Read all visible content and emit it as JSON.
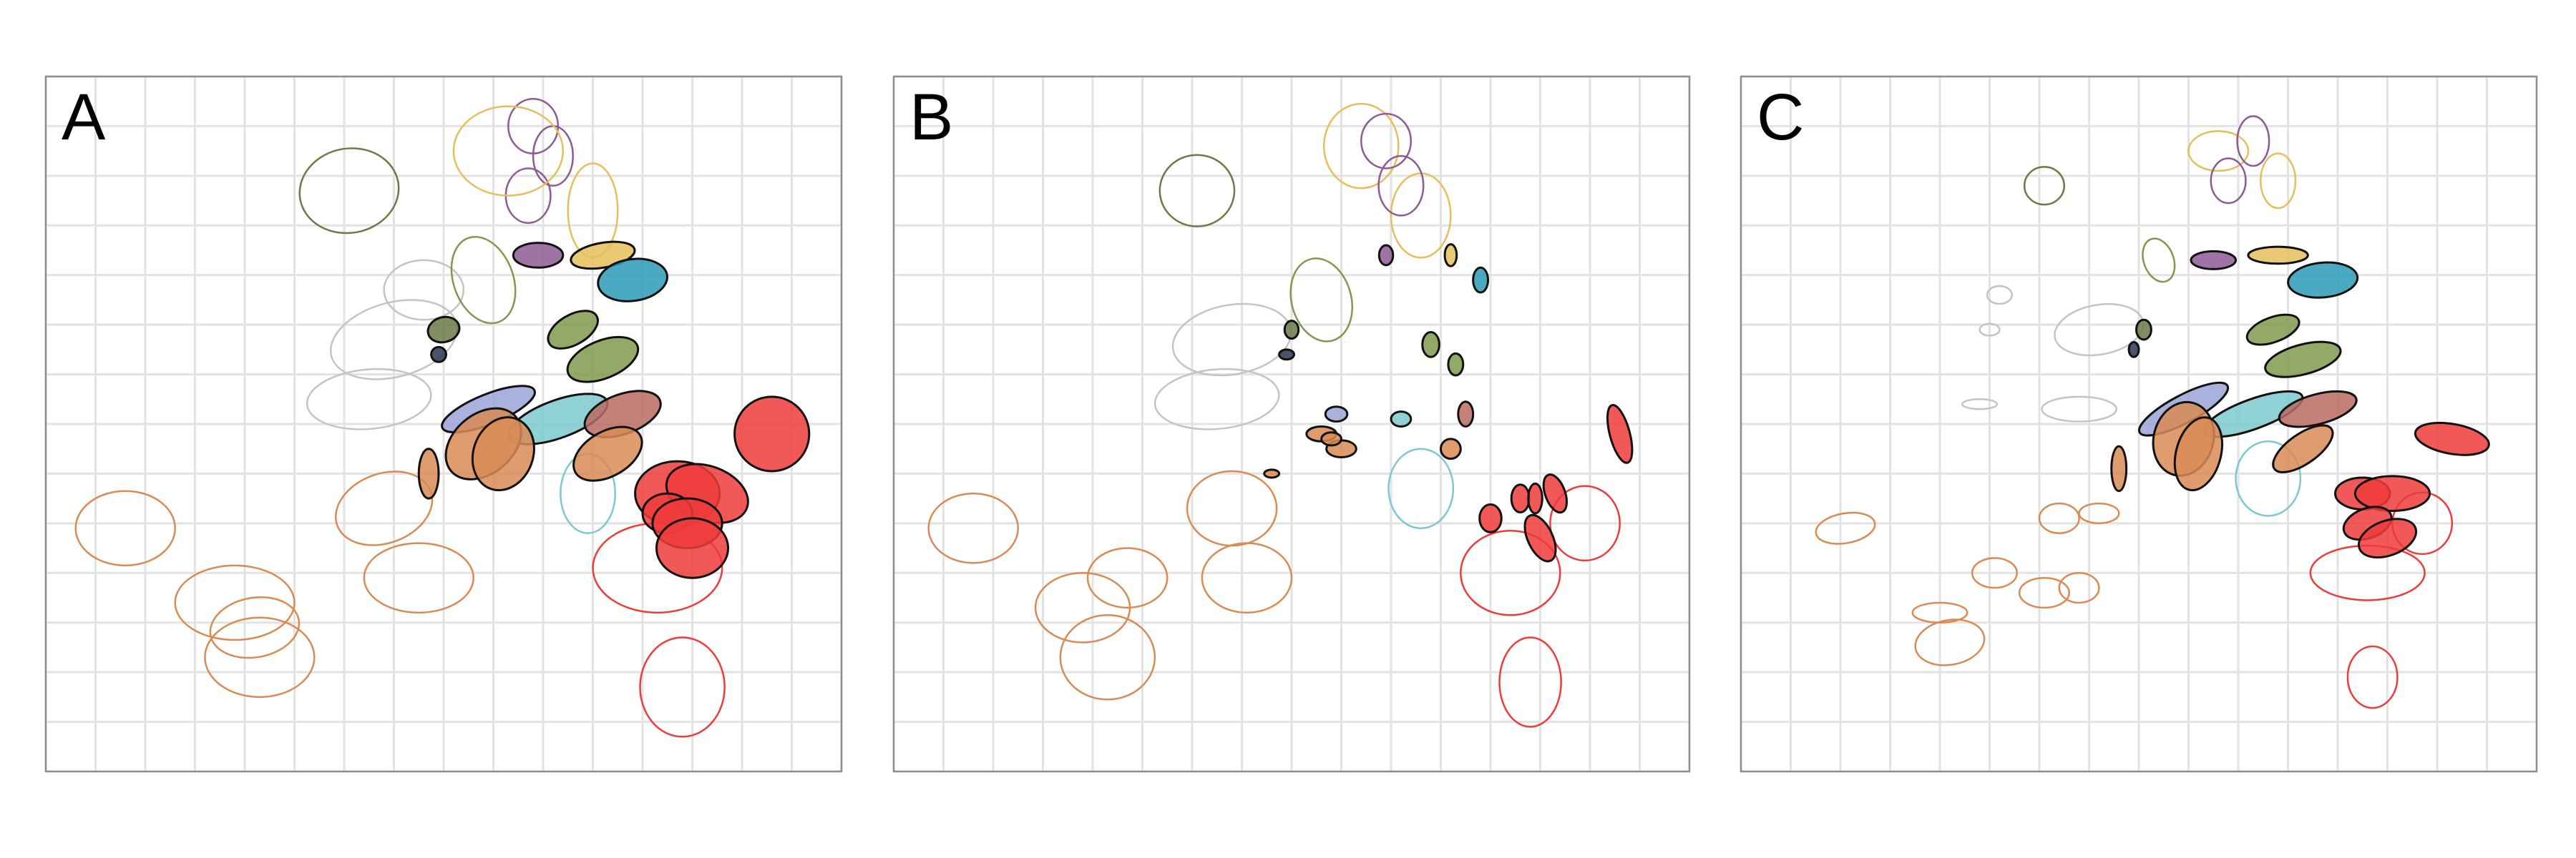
{
  "figure": {
    "colors": {
      "grid": "#e3e3e3",
      "frame": "#8f8f8f",
      "gray": "#c4c4c4",
      "navy": "#2d3550",
      "orange": "#d98b55",
      "red": "#ee3b3b",
      "gold": "#e6bf5c",
      "purple": "#8e5a93",
      "olive": "#6b7a49",
      "green": "#7f9a4e",
      "teal": "#2c9ab7",
      "cyan": "#7cc9cf",
      "lavender": "#9aa3d6",
      "brown": "#b86b63"
    }
  },
  "chart_data": [
    {
      "type": "scatter",
      "panel_label": "A",
      "title": "",
      "xlabel": "",
      "ylabel": "",
      "xlim": [
        0,
        16
      ],
      "ylim": [
        0,
        14
      ],
      "grid": true,
      "filled": [
        {
          "group": "purple",
          "x": 9.9,
          "y": 10.4,
          "rx": 0.5,
          "ry": 0.25,
          "angle": 0
        },
        {
          "group": "gold",
          "x": 11.2,
          "y": 10.4,
          "rx": 0.65,
          "ry": 0.25,
          "angle": 10
        },
        {
          "group": "teal",
          "x": 11.8,
          "y": 9.9,
          "rx": 0.7,
          "ry": 0.42,
          "angle": 8
        },
        {
          "group": "olive",
          "x": 8.0,
          "y": 8.9,
          "rx": 0.32,
          "ry": 0.25,
          "angle": 15
        },
        {
          "group": "navy",
          "x": 7.9,
          "y": 8.4,
          "rx": 0.15,
          "ry": 0.15,
          "angle": 0
        },
        {
          "group": "green",
          "x": 10.6,
          "y": 8.9,
          "rx": 0.55,
          "ry": 0.3,
          "angle": 30
        },
        {
          "group": "green",
          "x": 11.2,
          "y": 8.3,
          "rx": 0.75,
          "ry": 0.38,
          "angle": 22
        },
        {
          "group": "lavender",
          "x": 8.9,
          "y": 7.3,
          "rx": 1.0,
          "ry": 0.3,
          "angle": 22
        },
        {
          "group": "cyan",
          "x": 10.3,
          "y": 7.1,
          "rx": 1.05,
          "ry": 0.38,
          "angle": 20
        },
        {
          "group": "brown",
          "x": 11.6,
          "y": 7.2,
          "rx": 0.8,
          "ry": 0.4,
          "angle": 20
        },
        {
          "group": "orange",
          "x": 8.8,
          "y": 6.6,
          "rx": 0.85,
          "ry": 0.6,
          "angle": 40
        },
        {
          "group": "orange",
          "x": 9.2,
          "y": 6.4,
          "rx": 0.6,
          "ry": 0.75,
          "angle": -20
        },
        {
          "group": "orange",
          "x": 7.7,
          "y": 6.0,
          "rx": 0.2,
          "ry": 0.5,
          "angle": 0
        },
        {
          "group": "orange",
          "x": 11.3,
          "y": 6.4,
          "rx": 0.75,
          "ry": 0.45,
          "angle": 30
        },
        {
          "group": "red",
          "x": 14.6,
          "y": 6.8,
          "rx": 0.75,
          "ry": 0.75,
          "angle": 0
        },
        {
          "group": "red",
          "x": 12.7,
          "y": 5.6,
          "rx": 0.85,
          "ry": 0.65,
          "angle": 0
        },
        {
          "group": "red",
          "x": 13.3,
          "y": 5.6,
          "rx": 0.85,
          "ry": 0.55,
          "angle": -20
        },
        {
          "group": "red",
          "x": 12.5,
          "y": 5.2,
          "rx": 0.5,
          "ry": 0.4,
          "angle": 0
        },
        {
          "group": "red",
          "x": 12.9,
          "y": 5.0,
          "rx": 0.7,
          "ry": 0.5,
          "angle": 0
        },
        {
          "group": "red",
          "x": 13.0,
          "y": 4.5,
          "rx": 0.72,
          "ry": 0.6,
          "angle": 0
        }
      ],
      "outline": [
        {
          "group": "olive",
          "x": 6.1,
          "y": 11.7,
          "rx": 1.0,
          "ry": 0.85,
          "angle": 10
        },
        {
          "group": "orange",
          "x": 1.6,
          "y": 4.9,
          "rx": 1.0,
          "ry": 0.75,
          "angle": 0
        },
        {
          "group": "orange",
          "x": 4.3,
          "y": 2.3,
          "rx": 1.1,
          "ry": 0.8,
          "angle": 0
        },
        {
          "group": "orange",
          "x": 3.8,
          "y": 3.4,
          "rx": 1.2,
          "ry": 0.75,
          "angle": 0
        },
        {
          "group": "orange",
          "x": 4.2,
          "y": 2.9,
          "rx": 0.9,
          "ry": 0.6,
          "angle": 10
        },
        {
          "group": "orange",
          "x": 6.8,
          "y": 5.3,
          "rx": 1.0,
          "ry": 0.7,
          "angle": 20
        },
        {
          "group": "orange",
          "x": 7.5,
          "y": 3.9,
          "rx": 1.1,
          "ry": 0.7,
          "angle": 0
        },
        {
          "group": "red",
          "x": 12.8,
          "y": 1.7,
          "rx": 0.85,
          "ry": 1.0,
          "angle": 0
        },
        {
          "group": "red",
          "x": 12.3,
          "y": 4.1,
          "rx": 1.3,
          "ry": 0.9,
          "angle": 0
        },
        {
          "group": "cyan",
          "x": 10.9,
          "y": 5.6,
          "rx": 0.55,
          "ry": 0.8,
          "angle": 0
        },
        {
          "group": "purple",
          "x": 9.8,
          "y": 13.0,
          "rx": 0.5,
          "ry": 0.55,
          "angle": 0
        },
        {
          "group": "purple",
          "x": 10.2,
          "y": 12.4,
          "rx": 0.4,
          "ry": 0.6,
          "angle": 0
        },
        {
          "group": "purple",
          "x": 9.7,
          "y": 11.6,
          "rx": 0.45,
          "ry": 0.55,
          "angle": 0
        },
        {
          "group": "gold",
          "x": 9.3,
          "y": 12.5,
          "rx": 1.1,
          "ry": 0.9,
          "angle": 0
        },
        {
          "group": "gold",
          "x": 11.0,
          "y": 11.3,
          "rx": 0.5,
          "ry": 0.95,
          "angle": 0
        },
        {
          "group": "gray",
          "x": 7.0,
          "y": 8.7,
          "rx": 1.3,
          "ry": 0.75,
          "angle": 15
        },
        {
          "group": "gray",
          "x": 6.5,
          "y": 7.5,
          "rx": 1.25,
          "ry": 0.6,
          "angle": 5
        },
        {
          "group": "gray",
          "x": 7.6,
          "y": 9.7,
          "rx": 0.8,
          "ry": 0.6,
          "angle": 0
        },
        {
          "group": "green",
          "x": 8.8,
          "y": 9.9,
          "rx": 0.6,
          "ry": 0.9,
          "angle": 20
        }
      ]
    },
    {
      "type": "scatter",
      "panel_label": "B",
      "title": "",
      "xlabel": "",
      "ylabel": "",
      "xlim": [
        0,
        16
      ],
      "ylim": [
        0,
        14
      ],
      "grid": true,
      "filled": [
        {
          "group": "purple",
          "x": 9.9,
          "y": 10.4,
          "rx": 0.14,
          "ry": 0.2,
          "angle": 0
        },
        {
          "group": "gold",
          "x": 11.2,
          "y": 10.4,
          "rx": 0.12,
          "ry": 0.22,
          "angle": 0
        },
        {
          "group": "teal",
          "x": 11.8,
          "y": 9.9,
          "rx": 0.15,
          "ry": 0.25,
          "angle": 0
        },
        {
          "group": "olive",
          "x": 8.0,
          "y": 8.9,
          "rx": 0.14,
          "ry": 0.18,
          "angle": 0
        },
        {
          "group": "navy",
          "x": 7.9,
          "y": 8.4,
          "rx": 0.15,
          "ry": 0.1,
          "angle": 0
        },
        {
          "group": "green",
          "x": 10.8,
          "y": 8.6,
          "rx": 0.17,
          "ry": 0.25,
          "angle": 0
        },
        {
          "group": "green",
          "x": 11.3,
          "y": 8.2,
          "rx": 0.15,
          "ry": 0.22,
          "angle": 0
        },
        {
          "group": "lavender",
          "x": 8.9,
          "y": 7.2,
          "rx": 0.22,
          "ry": 0.15,
          "angle": 0
        },
        {
          "group": "cyan",
          "x": 10.2,
          "y": 7.1,
          "rx": 0.2,
          "ry": 0.15,
          "angle": 0
        },
        {
          "group": "brown",
          "x": 11.5,
          "y": 7.2,
          "rx": 0.15,
          "ry": 0.25,
          "angle": 0
        },
        {
          "group": "orange",
          "x": 8.6,
          "y": 6.8,
          "rx": 0.3,
          "ry": 0.15,
          "angle": 0
        },
        {
          "group": "orange",
          "x": 9.0,
          "y": 6.5,
          "rx": 0.3,
          "ry": 0.17,
          "angle": 0
        },
        {
          "group": "orange",
          "x": 8.8,
          "y": 6.7,
          "rx": 0.2,
          "ry": 0.13,
          "angle": 0
        },
        {
          "group": "orange",
          "x": 7.6,
          "y": 6.0,
          "rx": 0.15,
          "ry": 0.08,
          "angle": 0
        },
        {
          "group": "orange",
          "x": 11.2,
          "y": 6.5,
          "rx": 0.2,
          "ry": 0.2,
          "angle": 0
        },
        {
          "group": "red",
          "x": 14.6,
          "y": 6.8,
          "rx": 0.2,
          "ry": 0.6,
          "angle": 15
        },
        {
          "group": "red",
          "x": 12.0,
          "y": 5.1,
          "rx": 0.22,
          "ry": 0.28,
          "angle": 0
        },
        {
          "group": "red",
          "x": 12.6,
          "y": 5.5,
          "rx": 0.18,
          "ry": 0.28,
          "angle": 0
        },
        {
          "group": "red",
          "x": 12.9,
          "y": 5.5,
          "rx": 0.14,
          "ry": 0.3,
          "angle": 0
        },
        {
          "group": "red",
          "x": 13.3,
          "y": 5.6,
          "rx": 0.2,
          "ry": 0.4,
          "angle": 20
        },
        {
          "group": "red",
          "x": 13.0,
          "y": 4.7,
          "rx": 0.25,
          "ry": 0.5,
          "angle": 25
        }
      ],
      "outline": [
        {
          "group": "olive",
          "x": 6.1,
          "y": 11.7,
          "rx": 0.75,
          "ry": 0.72,
          "angle": 0
        },
        {
          "group": "orange",
          "x": 1.6,
          "y": 4.9,
          "rx": 0.9,
          "ry": 0.7,
          "angle": 0
        },
        {
          "group": "orange",
          "x": 4.3,
          "y": 2.3,
          "rx": 0.95,
          "ry": 0.85,
          "angle": 0
        },
        {
          "group": "orange",
          "x": 3.8,
          "y": 3.3,
          "rx": 0.95,
          "ry": 0.7,
          "angle": 0
        },
        {
          "group": "orange",
          "x": 4.7,
          "y": 3.9,
          "rx": 0.8,
          "ry": 0.6,
          "angle": 0
        },
        {
          "group": "orange",
          "x": 6.8,
          "y": 5.3,
          "rx": 0.9,
          "ry": 0.75,
          "angle": 0
        },
        {
          "group": "orange",
          "x": 7.1,
          "y": 3.9,
          "rx": 0.9,
          "ry": 0.7,
          "angle": 0
        },
        {
          "group": "red",
          "x": 12.8,
          "y": 1.8,
          "rx": 0.62,
          "ry": 0.9,
          "angle": 0
        },
        {
          "group": "red",
          "x": 12.4,
          "y": 4.0,
          "rx": 1.0,
          "ry": 0.85,
          "angle": 0
        },
        {
          "group": "red",
          "x": 13.9,
          "y": 5.0,
          "rx": 0.7,
          "ry": 0.75,
          "angle": 0
        },
        {
          "group": "cyan",
          "x": 10.6,
          "y": 5.7,
          "rx": 0.65,
          "ry": 0.8,
          "angle": 0
        },
        {
          "group": "gold",
          "x": 9.4,
          "y": 12.6,
          "rx": 0.75,
          "ry": 0.85,
          "angle": 0
        },
        {
          "group": "gold",
          "x": 10.6,
          "y": 11.2,
          "rx": 0.6,
          "ry": 0.85,
          "angle": 0
        },
        {
          "group": "purple",
          "x": 9.9,
          "y": 12.7,
          "rx": 0.5,
          "ry": 0.55,
          "angle": 0
        },
        {
          "group": "purple",
          "x": 10.2,
          "y": 11.8,
          "rx": 0.45,
          "ry": 0.6,
          "angle": 0
        },
        {
          "group": "gray",
          "x": 6.8,
          "y": 8.7,
          "rx": 1.2,
          "ry": 0.7,
          "angle": 10
        },
        {
          "group": "gray",
          "x": 6.5,
          "y": 7.5,
          "rx": 1.25,
          "ry": 0.6,
          "angle": 5
        },
        {
          "group": "green",
          "x": 8.6,
          "y": 9.5,
          "rx": 0.6,
          "ry": 0.85,
          "angle": 15
        }
      ]
    },
    {
      "type": "scatter",
      "panel_label": "C",
      "title": "",
      "xlabel": "",
      "ylabel": "",
      "xlim": [
        0,
        16
      ],
      "ylim": [
        0,
        14
      ],
      "grid": true,
      "filled": [
        {
          "group": "purple",
          "x": 9.5,
          "y": 10.3,
          "rx": 0.45,
          "ry": 0.18,
          "angle": 0
        },
        {
          "group": "gold",
          "x": 10.8,
          "y": 10.4,
          "rx": 0.6,
          "ry": 0.17,
          "angle": 0
        },
        {
          "group": "teal",
          "x": 11.7,
          "y": 9.9,
          "rx": 0.7,
          "ry": 0.35,
          "angle": 5
        },
        {
          "group": "olive",
          "x": 8.1,
          "y": 8.9,
          "rx": 0.15,
          "ry": 0.2,
          "angle": 0
        },
        {
          "group": "navy",
          "x": 7.9,
          "y": 8.5,
          "rx": 0.1,
          "ry": 0.15,
          "angle": 0
        },
        {
          "group": "green",
          "x": 10.7,
          "y": 8.9,
          "rx": 0.55,
          "ry": 0.25,
          "angle": 20
        },
        {
          "group": "green",
          "x": 11.3,
          "y": 8.3,
          "rx": 0.78,
          "ry": 0.3,
          "angle": 15
        },
        {
          "group": "lavender",
          "x": 8.9,
          "y": 7.3,
          "rx": 1.0,
          "ry": 0.28,
          "angle": 28
        },
        {
          "group": "cyan",
          "x": 10.3,
          "y": 7.2,
          "rx": 1.05,
          "ry": 0.3,
          "angle": 20
        },
        {
          "group": "brown",
          "x": 11.6,
          "y": 7.3,
          "rx": 0.8,
          "ry": 0.3,
          "angle": 15
        },
        {
          "group": "orange",
          "x": 8.9,
          "y": 6.7,
          "rx": 0.6,
          "ry": 0.75,
          "angle": -15
        },
        {
          "group": "orange",
          "x": 9.2,
          "y": 6.4,
          "rx": 0.45,
          "ry": 0.75,
          "angle": -15
        },
        {
          "group": "orange",
          "x": 7.6,
          "y": 6.1,
          "rx": 0.15,
          "ry": 0.45,
          "angle": 0
        },
        {
          "group": "orange",
          "x": 11.3,
          "y": 6.5,
          "rx": 0.7,
          "ry": 0.3,
          "angle": 35
        },
        {
          "group": "red",
          "x": 14.3,
          "y": 6.7,
          "rx": 0.75,
          "ry": 0.3,
          "angle": -10
        },
        {
          "group": "red",
          "x": 12.5,
          "y": 5.6,
          "rx": 0.55,
          "ry": 0.32,
          "angle": 0
        },
        {
          "group": "red",
          "x": 13.1,
          "y": 5.6,
          "rx": 0.75,
          "ry": 0.35,
          "angle": 0
        },
        {
          "group": "red",
          "x": 12.6,
          "y": 5.0,
          "rx": 0.5,
          "ry": 0.3,
          "angle": 20
        },
        {
          "group": "red",
          "x": 13.0,
          "y": 4.7,
          "rx": 0.6,
          "ry": 0.35,
          "angle": 20
        }
      ],
      "outline": [
        {
          "group": "olive",
          "x": 6.1,
          "y": 11.8,
          "rx": 0.4,
          "ry": 0.38,
          "angle": 0
        },
        {
          "group": "orange",
          "x": 2.1,
          "y": 4.9,
          "rx": 0.6,
          "ry": 0.3,
          "angle": 10
        },
        {
          "group": "orange",
          "x": 4.2,
          "y": 2.6,
          "rx": 0.7,
          "ry": 0.45,
          "angle": 10
        },
        {
          "group": "orange",
          "x": 4.0,
          "y": 3.2,
          "rx": 0.55,
          "ry": 0.2,
          "angle": 0
        },
        {
          "group": "orange",
          "x": 5.1,
          "y": 4.0,
          "rx": 0.45,
          "ry": 0.3,
          "angle": 0
        },
        {
          "group": "orange",
          "x": 6.1,
          "y": 3.6,
          "rx": 0.5,
          "ry": 0.3,
          "angle": 0
        },
        {
          "group": "orange",
          "x": 6.8,
          "y": 3.7,
          "rx": 0.4,
          "ry": 0.3,
          "angle": 0
        },
        {
          "group": "orange",
          "x": 6.4,
          "y": 5.1,
          "rx": 0.4,
          "ry": 0.3,
          "angle": 0
        },
        {
          "group": "orange",
          "x": 7.2,
          "y": 5.2,
          "rx": 0.4,
          "ry": 0.2,
          "angle": 0
        },
        {
          "group": "red",
          "x": 12.7,
          "y": 1.9,
          "rx": 0.5,
          "ry": 0.62,
          "angle": 0
        },
        {
          "group": "red",
          "x": 12.6,
          "y": 4.0,
          "rx": 1.15,
          "ry": 0.55,
          "angle": 0
        },
        {
          "group": "red",
          "x": 13.7,
          "y": 5.0,
          "rx": 0.6,
          "ry": 0.62,
          "angle": 0
        },
        {
          "group": "cyan",
          "x": 10.6,
          "y": 5.9,
          "rx": 0.65,
          "ry": 0.75,
          "angle": 0
        },
        {
          "group": "gold",
          "x": 9.6,
          "y": 12.5,
          "rx": 0.6,
          "ry": 0.4,
          "angle": 0
        },
        {
          "group": "gold",
          "x": 10.8,
          "y": 11.9,
          "rx": 0.35,
          "ry": 0.55,
          "angle": 0
        },
        {
          "group": "purple",
          "x": 10.3,
          "y": 12.7,
          "rx": 0.32,
          "ry": 0.5,
          "angle": 0
        },
        {
          "group": "purple",
          "x": 9.8,
          "y": 11.9,
          "rx": 0.35,
          "ry": 0.45,
          "angle": 0
        },
        {
          "group": "gray",
          "x": 7.2,
          "y": 8.9,
          "rx": 0.9,
          "ry": 0.5,
          "angle": 10
        },
        {
          "group": "gray",
          "x": 6.8,
          "y": 7.3,
          "rx": 0.75,
          "ry": 0.25,
          "angle": 0
        },
        {
          "group": "gray",
          "x": 5.2,
          "y": 9.6,
          "rx": 0.25,
          "ry": 0.18,
          "angle": 0
        },
        {
          "group": "gray",
          "x": 4.8,
          "y": 7.4,
          "rx": 0.35,
          "ry": 0.1,
          "angle": 0
        },
        {
          "group": "gray",
          "x": 5.0,
          "y": 8.9,
          "rx": 0.2,
          "ry": 0.12,
          "angle": 0
        },
        {
          "group": "green",
          "x": 8.4,
          "y": 10.3,
          "rx": 0.3,
          "ry": 0.45,
          "angle": 20
        }
      ]
    }
  ]
}
